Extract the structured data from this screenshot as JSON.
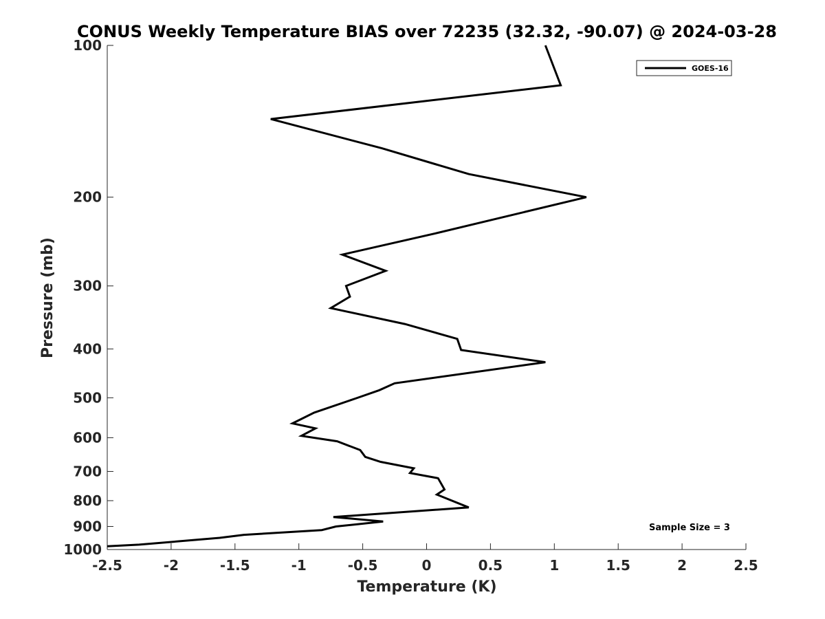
{
  "chart_data": {
    "type": "line",
    "title": "CONUS Weekly Temperature BIAS over 72235 (32.32, -90.07) @ 2024-03-28",
    "xlabel": "Temperature (K)",
    "ylabel": "Pressure (mb)",
    "xlim": [
      -2.5,
      2.5
    ],
    "ylim": [
      1000,
      100
    ],
    "y_scale": "log",
    "x_ticks": [
      "-2.5",
      "-2",
      "-1.5",
      "-1",
      "-0.5",
      "0",
      "0.5",
      "1",
      "1.5",
      "2",
      "2.5"
    ],
    "y_ticks": [
      "100",
      "200",
      "300",
      "400",
      "500",
      "600",
      "700",
      "800",
      "900",
      "1000"
    ],
    "legend": {
      "position": "top-right",
      "entries": [
        "GOES-16"
      ]
    },
    "annotations": [
      "Sample Size = 3"
    ],
    "grid": false,
    "series": [
      {
        "name": "GOES-16",
        "color": "#000000",
        "points": [
          {
            "x": 0.93,
            "p": 100
          },
          {
            "x": 1.05,
            "p": 120
          },
          {
            "x": -1.22,
            "p": 140
          },
          {
            "x": -0.35,
            "p": 160
          },
          {
            "x": 0.33,
            "p": 180
          },
          {
            "x": 1.25,
            "p": 200
          },
          {
            "x": 0.07,
            "p": 236
          },
          {
            "x": -0.66,
            "p": 260
          },
          {
            "x": -0.32,
            "p": 280
          },
          {
            "x": -0.63,
            "p": 300
          },
          {
            "x": -0.6,
            "p": 315
          },
          {
            "x": -0.75,
            "p": 332
          },
          {
            "x": -0.17,
            "p": 357
          },
          {
            "x": 0.24,
            "p": 382
          },
          {
            "x": 0.27,
            "p": 402
          },
          {
            "x": 0.93,
            "p": 425
          },
          {
            "x": -0.25,
            "p": 468
          },
          {
            "x": -0.37,
            "p": 483
          },
          {
            "x": -0.55,
            "p": 501
          },
          {
            "x": -0.88,
            "p": 535
          },
          {
            "x": -1.05,
            "p": 562
          },
          {
            "x": -0.87,
            "p": 575
          },
          {
            "x": -0.98,
            "p": 595
          },
          {
            "x": -0.7,
            "p": 610
          },
          {
            "x": -0.52,
            "p": 635
          },
          {
            "x": -0.48,
            "p": 655
          },
          {
            "x": -0.36,
            "p": 670
          },
          {
            "x": -0.1,
            "p": 690
          },
          {
            "x": -0.13,
            "p": 705
          },
          {
            "x": 0.09,
            "p": 722
          },
          {
            "x": 0.14,
            "p": 760
          },
          {
            "x": 0.08,
            "p": 778
          },
          {
            "x": 0.33,
            "p": 825
          },
          {
            "x": -0.73,
            "p": 862
          },
          {
            "x": -0.34,
            "p": 880
          },
          {
            "x": -0.71,
            "p": 900
          },
          {
            "x": -0.82,
            "p": 915
          },
          {
            "x": -1.43,
            "p": 935
          },
          {
            "x": -1.62,
            "p": 948
          },
          {
            "x": -2.25,
            "p": 978
          },
          {
            "x": -2.5,
            "p": 985
          }
        ]
      }
    ]
  }
}
